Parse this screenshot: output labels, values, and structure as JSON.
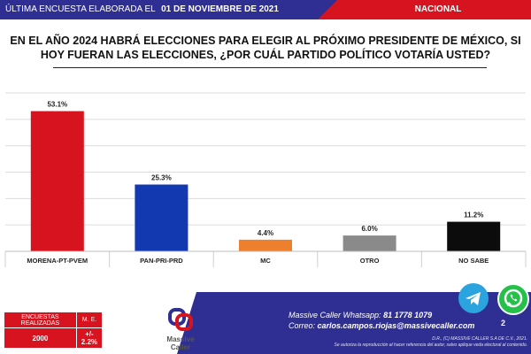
{
  "header": {
    "label": "ÚLTIMA ENCUESTA ELABORADA EL",
    "date": "01 DE NOVIEMBRE DE 2021",
    "region": "NACIONAL"
  },
  "chart_data": {
    "type": "bar",
    "title": "EN EL AÑO 2024 HABRÁ ELECCIONES PARA ELEGIR AL PRÓXIMO PRESIDENTE DE MÉXICO, SI HOY FUERAN LAS ELECCIONES, ¿POR CUÁL PARTIDO POLÍTICO VOTARÍA USTED?",
    "xlabel": "",
    "ylabel": "",
    "categories": [
      "MORENA-PT-PVEM",
      "PAN-PRI-PRD",
      "MC",
      "OTRO",
      "NO SABE"
    ],
    "values": [
      53.1,
      25.3,
      4.4,
      6.0,
      11.2
    ],
    "value_labels": [
      "53.1%",
      "25.3%",
      "4.4%",
      "6.0%",
      "11.2%"
    ],
    "colors": [
      "#d7131f",
      "#1339b0",
      "#ee7f2d",
      "#8a8a8a",
      "#0c0c0c"
    ],
    "ylim": [
      0,
      60
    ],
    "grid": true
  },
  "stats": {
    "sample_label": "ENCUESTAS REALIZADAS",
    "margin_label": "M. E.",
    "sample_value": "2000",
    "margin_value": "+/- 2.2%"
  },
  "brand": {
    "logo_name": "Massive",
    "logo_sub": "Caller"
  },
  "contact": {
    "whatsapp_label": "Massive Caller Whatsapp:",
    "whatsapp_number": "81 1778 1079",
    "email_label": "Correo:",
    "email": "carlos.campos.riojas@massivecaller.com",
    "copyright": "D.R., (C) MASSIVE CALLER S.A DE C.V., 2021.",
    "legal": "Se autoriza la reproducción al hacer referencia del autor, salvo aplique veda electoral al contenido.",
    "icons": [
      "telegram-icon",
      "whatsapp-icon"
    ],
    "whatsapp_badge": "2"
  }
}
